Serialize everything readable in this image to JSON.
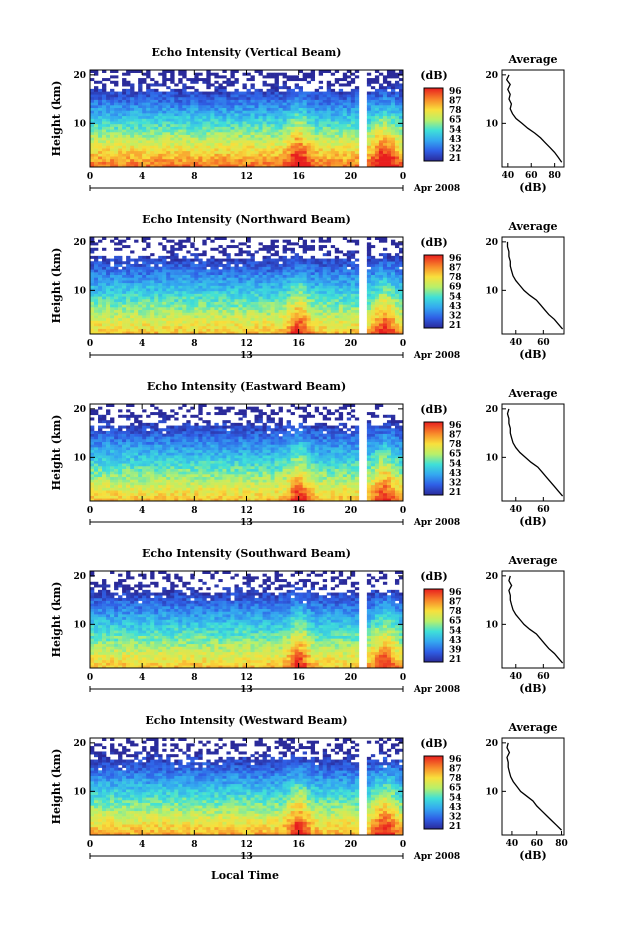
{
  "xlabel": "Local Time",
  "chart_data": [
    {
      "type": "heatmap",
      "title": "Echo Intensity (Vertical Beam)",
      "ylabel": "Height (km)",
      "x_ticks": [
        "0",
        "4",
        "8",
        "12",
        "16",
        "20",
        "0"
      ],
      "y_ticks": [
        "10",
        "20"
      ],
      "date_label": "Apr 2008",
      "day_label": "",
      "colorbar": {
        "unit": "(dB)",
        "ticks": [
          "96",
          "87",
          "78",
          "65",
          "54",
          "43",
          "32",
          "21"
        ]
      },
      "profile": {
        "title": "Average",
        "xlabel": "(dB)",
        "x_ticks": [
          "40",
          "60",
          "80"
        ],
        "y_ticks": [
          "10",
          "20"
        ],
        "xlim": [
          35,
          88
        ],
        "height": [
          2,
          3,
          4,
          5,
          6,
          7,
          8,
          9,
          10,
          11,
          12,
          13,
          14,
          15,
          16,
          17,
          18,
          19,
          20
        ],
        "values": [
          86,
          83,
          80,
          76,
          72,
          68,
          63,
          57,
          52,
          47,
          44,
          42,
          43,
          41,
          42,
          40,
          42,
          39,
          41
        ]
      }
    },
    {
      "type": "heatmap",
      "title": "Echo Intensity (Northward Beam)",
      "ylabel": "Height (km)",
      "x_ticks": [
        "0",
        "4",
        "8",
        "12",
        "16",
        "20",
        "0"
      ],
      "y_ticks": [
        "10",
        "20"
      ],
      "date_label": "Apr 2008",
      "day_label": "13",
      "colorbar": {
        "unit": "(dB)",
        "ticks": [
          "96",
          "87",
          "78",
          "69",
          "54",
          "43",
          "32",
          "21"
        ]
      },
      "profile": {
        "title": "Average",
        "xlabel": "(dB)",
        "x_ticks": [
          "40",
          "60"
        ],
        "y_ticks": [
          "10",
          "20"
        ],
        "xlim": [
          30,
          75
        ],
        "height": [
          2,
          3,
          4,
          5,
          6,
          7,
          8,
          9,
          10,
          11,
          12,
          13,
          14,
          15,
          16,
          17,
          18,
          19,
          20
        ],
        "values": [
          74,
          71,
          68,
          64,
          61,
          58,
          55,
          50,
          46,
          43,
          40,
          38,
          37,
          36,
          36,
          35,
          35,
          34,
          34
        ]
      }
    },
    {
      "type": "heatmap",
      "title": "Echo Intensity (Eastward Beam)",
      "ylabel": "Height (km)",
      "x_ticks": [
        "0",
        "4",
        "8",
        "12",
        "16",
        "20",
        "0"
      ],
      "y_ticks": [
        "10",
        "20"
      ],
      "date_label": "Apr 2008",
      "day_label": "13",
      "colorbar": {
        "unit": "(dB)",
        "ticks": [
          "96",
          "87",
          "78",
          "65",
          "54",
          "43",
          "32",
          "21"
        ]
      },
      "profile": {
        "title": "Average",
        "xlabel": "(dB)",
        "x_ticks": [
          "40",
          "60"
        ],
        "y_ticks": [
          "10",
          "20"
        ],
        "xlim": [
          30,
          75
        ],
        "height": [
          2,
          3,
          4,
          5,
          6,
          7,
          8,
          9,
          10,
          11,
          12,
          13,
          14,
          15,
          16,
          17,
          18,
          19,
          20
        ],
        "values": [
          74,
          71,
          68,
          65,
          62,
          59,
          56,
          51,
          47,
          43,
          40,
          38,
          37,
          36,
          36,
          35,
          35,
          34,
          35
        ]
      }
    },
    {
      "type": "heatmap",
      "title": "Echo Intensity (Southward Beam)",
      "ylabel": "Height (km)",
      "x_ticks": [
        "0",
        "4",
        "8",
        "12",
        "16",
        "20",
        "0"
      ],
      "y_ticks": [
        "10",
        "20"
      ],
      "date_label": "Apr 2008",
      "day_label": "13",
      "colorbar": {
        "unit": "(dB)",
        "ticks": [
          "96",
          "87",
          "78",
          "65",
          "54",
          "43",
          "39",
          "21"
        ]
      },
      "profile": {
        "title": "Average",
        "xlabel": "(dB)",
        "x_ticks": [
          "40",
          "60"
        ],
        "y_ticks": [
          "10",
          "20"
        ],
        "xlim": [
          30,
          75
        ],
        "height": [
          2,
          3,
          4,
          5,
          6,
          7,
          8,
          9,
          10,
          11,
          12,
          13,
          14,
          15,
          16,
          17,
          18,
          19,
          20
        ],
        "values": [
          74,
          71,
          68,
          64,
          61,
          58,
          55,
          50,
          46,
          43,
          40,
          38,
          37,
          36,
          36,
          35,
          37,
          35,
          36
        ]
      }
    },
    {
      "type": "heatmap",
      "title": "Echo Intensity (Westward Beam)",
      "ylabel": "Height (km)",
      "x_ticks": [
        "0",
        "4",
        "8",
        "12",
        "16",
        "20",
        "0"
      ],
      "y_ticks": [
        "10",
        "20"
      ],
      "date_label": "Apr 2008",
      "day_label": "13",
      "colorbar": {
        "unit": "(dB)",
        "ticks": [
          "96",
          "87",
          "78",
          "65",
          "54",
          "43",
          "32",
          "21"
        ]
      },
      "profile": {
        "title": "Average",
        "xlabel": "(dB)",
        "x_ticks": [
          "40",
          "60",
          "80"
        ],
        "y_ticks": [
          "10",
          "20"
        ],
        "xlim": [
          32,
          82
        ],
        "height": [
          2,
          3,
          4,
          5,
          6,
          7,
          8,
          9,
          10,
          11,
          12,
          13,
          14,
          15,
          16,
          17,
          18,
          19,
          20
        ],
        "values": [
          80,
          76,
          72,
          68,
          64,
          60,
          57,
          52,
          47,
          44,
          41,
          39,
          38,
          37,
          37,
          36,
          38,
          36,
          37
        ]
      }
    }
  ]
}
